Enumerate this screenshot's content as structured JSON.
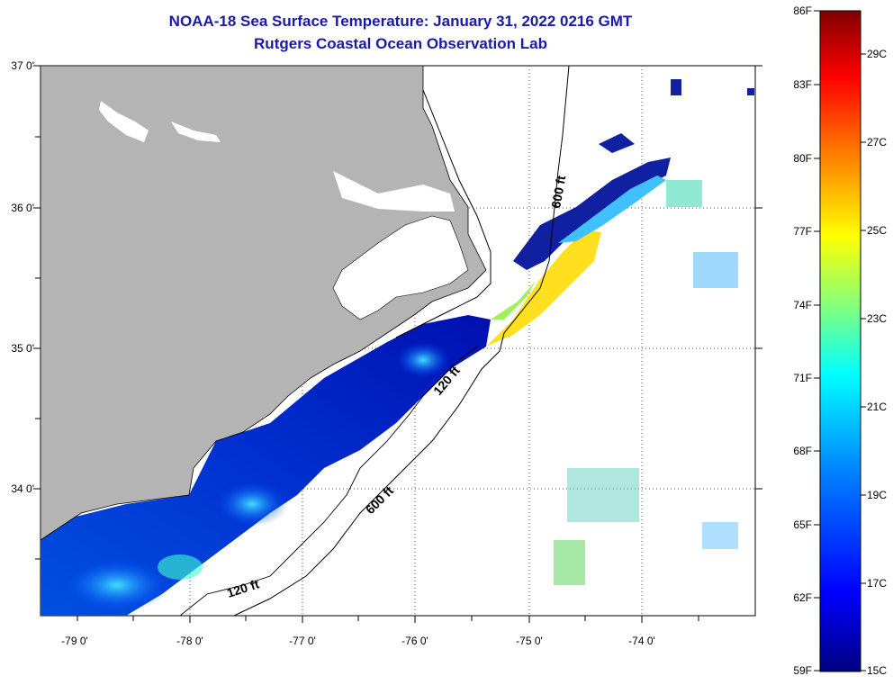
{
  "title": "NOAA-18 Sea Surface Temperature:  January 31, 2022 0216 GMT",
  "subtitle": "Rutgers Coastal Ocean Observation Lab",
  "lat_labels": [
    "37 0'",
    "36 0'",
    "35 0'",
    "34 0'"
  ],
  "lon_labels": [
    "-79 0'",
    "-78 0'",
    "-77 0'",
    "-76 0'",
    "-75 0'",
    "-74 0'"
  ],
  "contour_labels": [
    "600 ft",
    "120 ft",
    "600 ft",
    "120 ft"
  ],
  "colorbar": {
    "fahrenheit_labels": [
      "86F",
      "83F",
      "80F",
      "77F",
      "74F",
      "71F",
      "68F",
      "65F",
      "62F",
      "59F"
    ],
    "celsius_labels": [
      "29C",
      "27C",
      "25C",
      "23C",
      "21C",
      "19C",
      "17C",
      "15C"
    ],
    "colors": [
      "#800000",
      "#ff0000",
      "#ff8000",
      "#ffff00",
      "#80ff80",
      "#00ffff",
      "#0080ff",
      "#0000ff",
      "#000080"
    ]
  },
  "colors": {
    "land": "#b4b4b4",
    "title": "#1a1aa8"
  }
}
